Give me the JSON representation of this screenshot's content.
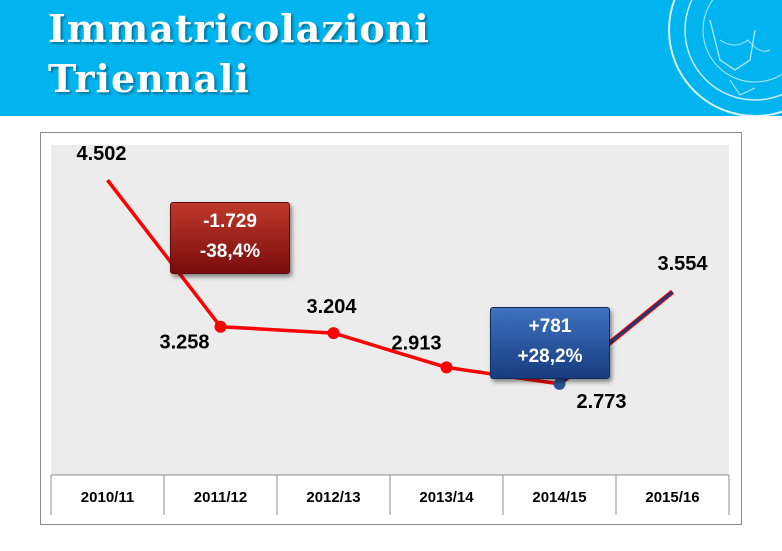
{
  "header": {
    "title_line1": "Immatricolazioni",
    "title_line2": "Triennali",
    "background_color": "#00b4f0"
  },
  "callouts": {
    "decrease": {
      "line1": "-1.729",
      "line2": "-38,4%",
      "color": "#9b1c1c"
    },
    "increase": {
      "line1": "+781",
      "line2": "+28,2%",
      "color": "#2a5599"
    }
  },
  "chart_data": {
    "type": "line",
    "categories": [
      "2010/11",
      "2011/12",
      "2012/13",
      "2013/14",
      "2014/15",
      "2015/16"
    ],
    "values": [
      4502,
      3258,
      3204,
      2913,
      2773,
      3554
    ],
    "data_labels": [
      "4.502",
      "3.258",
      "3.204",
      "2.913",
      "2.773",
      "3.554"
    ],
    "title": "",
    "xlabel": "",
    "ylabel": "",
    "ylim": [
      2000,
      4800
    ],
    "grid": false,
    "plot_background": "#ececec",
    "series_colors": {
      "main": "#ff0000",
      "recovery": "#1f3a73"
    },
    "markers_on": [
      "2011/12",
      "2012/13",
      "2013/14",
      "2014/15"
    ]
  }
}
